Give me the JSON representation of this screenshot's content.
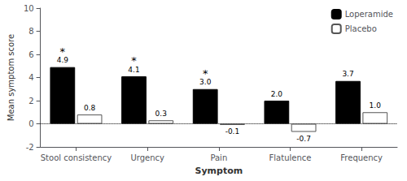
{
  "chart_data": {
    "type": "bar",
    "xlabel": "Symptom",
    "ylabel": "Mean symptom score",
    "categories": [
      "Stool consistency",
      "Urgency",
      "Pain",
      "Flatulence",
      "Frequency"
    ],
    "series": [
      {
        "name": "Loperamide",
        "color": "#000000",
        "values": [
          4.9,
          4.1,
          3.0,
          2.0,
          3.7
        ],
        "value_labels": [
          "4.9",
          "4.1",
          "3.0",
          "2.0",
          "3.7"
        ]
      },
      {
        "name": "Placebo",
        "color": "#ffffff",
        "values": [
          0.8,
          0.3,
          -0.1,
          -0.7,
          1.0
        ],
        "value_labels": [
          "0.8",
          "0.3",
          "-0.1",
          "-0.7",
          "1.0"
        ]
      }
    ],
    "ylim": [
      -2,
      10
    ],
    "yticks": [
      -2,
      0,
      2,
      4,
      6,
      8,
      10
    ],
    "grid": false,
    "legend": "upper right",
    "data_labels": true,
    "annotations": [
      {
        "text": "*",
        "series": "Loperamide",
        "category": "Stool consistency"
      },
      {
        "text": "*",
        "series": "Loperamide",
        "category": "Urgency"
      },
      {
        "text": "*",
        "series": "Loperamide",
        "category": "Pain"
      }
    ]
  }
}
